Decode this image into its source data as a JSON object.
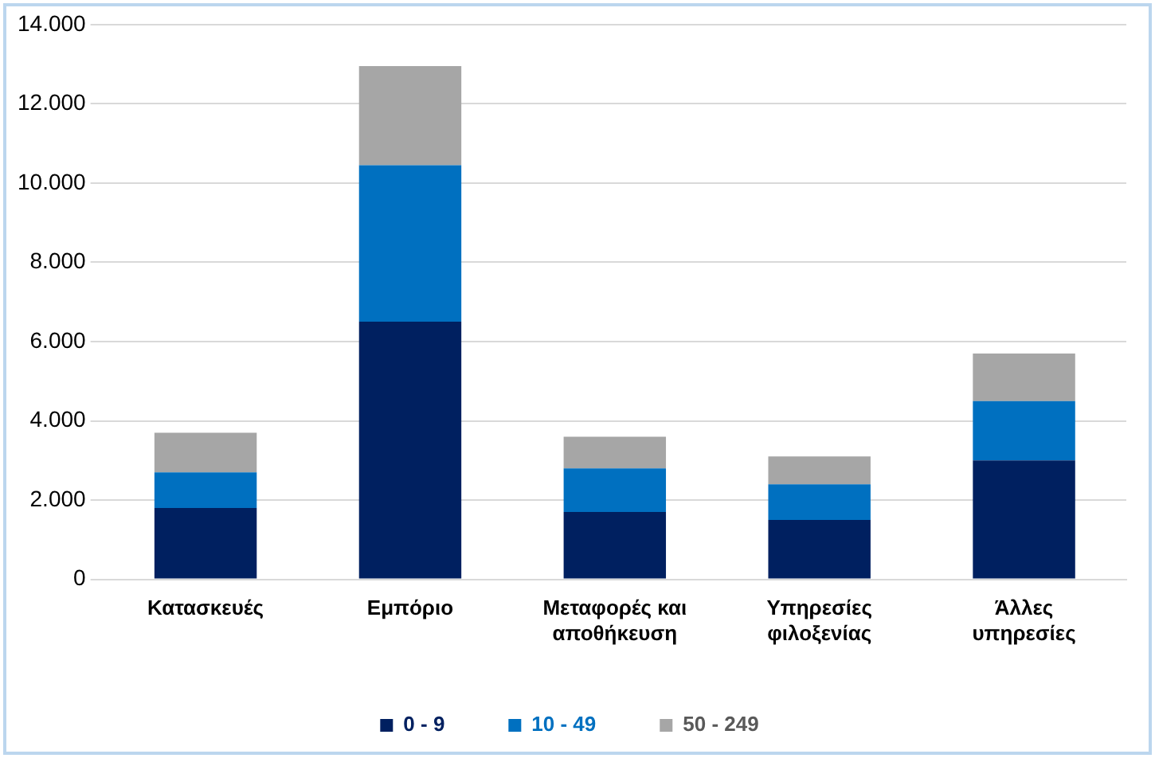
{
  "chart_data": {
    "type": "bar",
    "stacked": true,
    "categories": [
      "Κατασκευές",
      "Εμπόριο",
      "Μεταφορές και αποθήκευση",
      "Υπηρεσίες φιλοξενίας",
      "Άλλες υπηρεσίες"
    ],
    "series": [
      {
        "name": "0 - 9",
        "color": "#002060",
        "values": [
          1800,
          6500,
          1700,
          1500,
          3000
        ]
      },
      {
        "name": "10 - 49",
        "color": "#0070c0",
        "values": [
          900,
          3950,
          1100,
          900,
          1500
        ]
      },
      {
        "name": "50 - 249",
        "color": "#a6a6a6",
        "values": [
          1000,
          2500,
          800,
          700,
          1200
        ]
      }
    ],
    "ylim": [
      0,
      14000
    ],
    "yticks": [
      {
        "value": 0,
        "label": "0"
      },
      {
        "value": 2000,
        "label": "2.000"
      },
      {
        "value": 4000,
        "label": "4.000"
      },
      {
        "value": 6000,
        "label": "6.000"
      },
      {
        "value": 8000,
        "label": "8.000"
      },
      {
        "value": 10000,
        "label": "10.000"
      },
      {
        "value": 12000,
        "label": "12.000"
      },
      {
        "value": 14000,
        "label": "14.000"
      }
    ],
    "grid": "y",
    "legend": "bottom"
  }
}
